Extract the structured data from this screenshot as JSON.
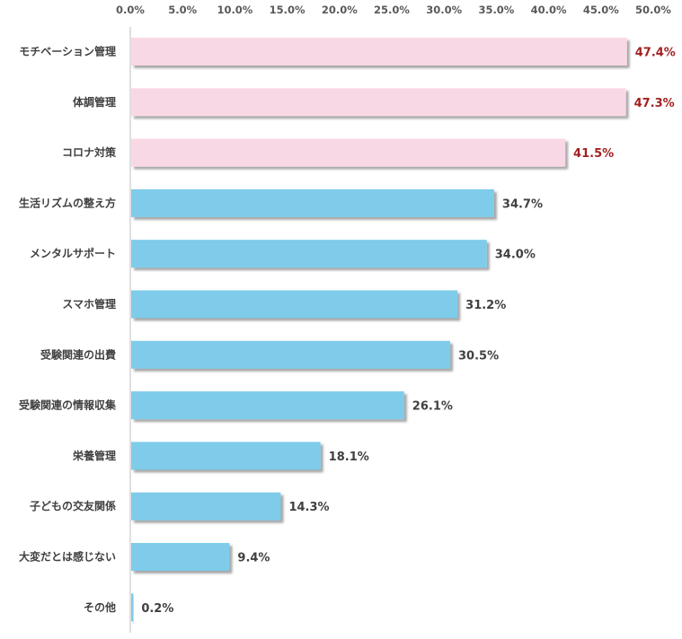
{
  "chart_data": {
    "type": "bar",
    "orientation": "horizontal",
    "xlim": [
      0,
      50
    ],
    "x_ticks": [
      "0.0%",
      "5.0%",
      "10.0%",
      "15.0%",
      "20.0%",
      "25.0%",
      "30.0%",
      "35.0%",
      "40.0%",
      "45.0%",
      "50.0%"
    ],
    "x_tick_values": [
      0,
      5,
      10,
      15,
      20,
      25,
      30,
      35,
      40,
      45,
      50
    ],
    "x_axis_position": "top",
    "grid": false,
    "legend": "none",
    "categories": [
      "モチベーション管理",
      "体調管理",
      "コロナ対策",
      "生活リズムの整え方",
      "メンタルサポート",
      "スマホ管理",
      "受験関連の出費",
      "受験関連の情報収集",
      "栄養管理",
      "子どもの交友関係",
      "大変だとは感じない",
      "その他"
    ],
    "values": [
      47.4,
      47.3,
      41.5,
      34.7,
      34.0,
      31.2,
      30.5,
      26.1,
      18.1,
      14.3,
      9.4,
      0.2
    ],
    "value_labels": [
      "47.4%",
      "47.3%",
      "41.5%",
      "34.7%",
      "34.0%",
      "31.2%",
      "30.5%",
      "26.1%",
      "18.1%",
      "14.3%",
      "9.4%",
      "0.2%"
    ],
    "highlight_count": 3,
    "colors": {
      "highlight_bar": "#f9d8e6",
      "highlight_label": "#a32020",
      "bar": "#7ecbea",
      "label": "#404040",
      "axis": "#bfbfbf"
    }
  }
}
